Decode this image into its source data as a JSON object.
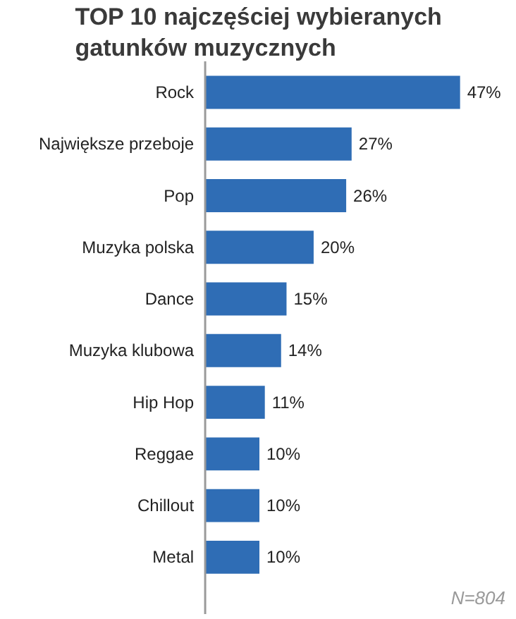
{
  "chart_data": {
    "type": "bar",
    "orientation": "horizontal",
    "title": "TOP 10 najczęściej wybieranych gatunków muzycznych",
    "categories": [
      "Rock",
      "Największe przeboje",
      "Pop",
      "Muzyka polska",
      "Dance",
      "Muzyka klubowa",
      "Hip Hop",
      "Reggae",
      "Chillout",
      "Metal"
    ],
    "values": [
      47,
      27,
      26,
      20,
      15,
      14,
      11,
      10,
      10,
      10
    ],
    "value_labels": [
      "47%",
      "27%",
      "26%",
      "20%",
      "15%",
      "14%",
      "11%",
      "10%",
      "10%",
      "10%"
    ],
    "color": "#2f6db5",
    "grid": false,
    "annotations": [
      "N=804"
    ]
  }
}
